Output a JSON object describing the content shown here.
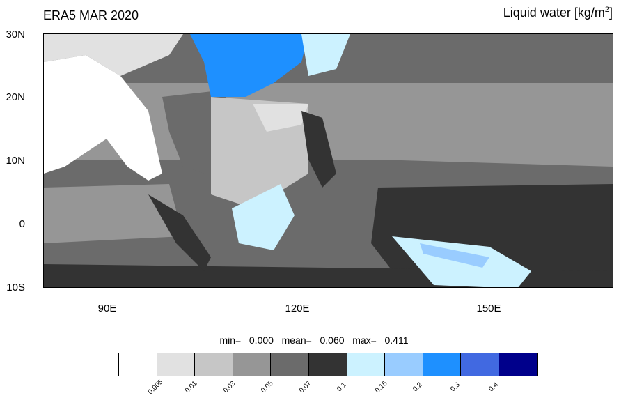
{
  "title_left": "ERA5 MAR 2020",
  "title_right": {
    "text": "Liquid water  [kg/m",
    "sup": "2",
    "close": "]"
  },
  "y_axis_labels": [
    "30N",
    "20N",
    "10N",
    "0",
    "10S"
  ],
  "x_axis_labels": [
    "90E",
    "120E",
    "150E"
  ],
  "stats": {
    "min_label": "min=",
    "min": "0.000",
    "mean_label": "mean=",
    "mean": "0.060",
    "max_label": "max=",
    "max": "0.411"
  },
  "legend": {
    "colors": [
      "#ffffff",
      "#e1e1e1",
      "#c6c6c6",
      "#969696",
      "#6b6b6b",
      "#333333",
      "#ccf2ff",
      "#99ccff",
      "#1e90ff",
      "#4169e1",
      "#00008b"
    ],
    "ticks": [
      "0.005",
      "0.01",
      "0.03",
      "0.05",
      "0.07",
      "0.1",
      "0.15",
      "0.2",
      "0.3",
      "0.4"
    ]
  },
  "map_colors": {
    "land_dry": "#ffffff",
    "very_low": "#e1e1e1",
    "low": "#c6c6c6",
    "mid": "#969696",
    "high": "#6b6b6b",
    "very_high": "#333333",
    "cyan": "#ccf2ff",
    "blue": "#1e90ff",
    "light_blue": "#99ccff"
  }
}
